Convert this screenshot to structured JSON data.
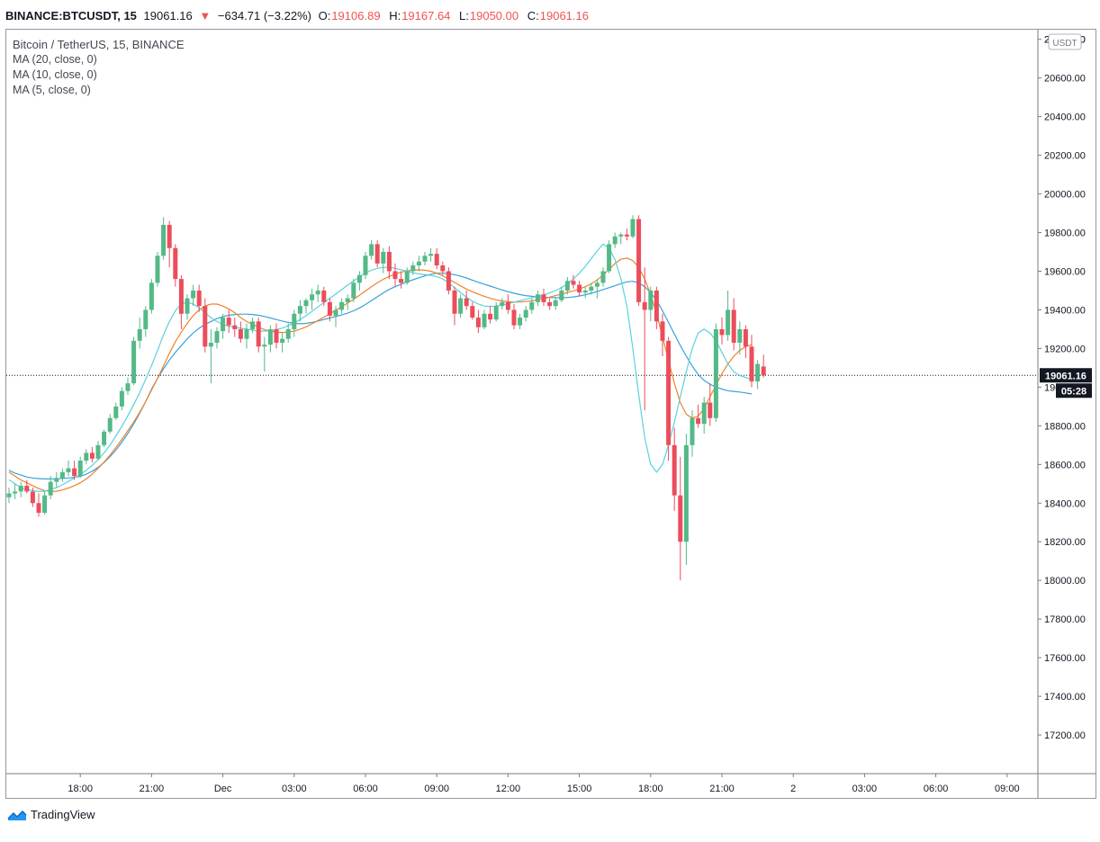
{
  "header": {
    "symbol": "BINANCE:BTCUSDT, 15",
    "last": "19061.16",
    "change": "−634.71 (−3.22%)",
    "open_label": "O:",
    "open": "19106.89",
    "high_label": "H:",
    "high": "19167.64",
    "low_label": "L:",
    "low": "19050.00",
    "close_label": "C:",
    "close": "19061.16",
    "down_arrow": "▼"
  },
  "legend": {
    "title": "Bitcoin / TetherUS, 15, BINANCE",
    "ma1": "MA (20, close, 0)",
    "ma2": "MA (10, close, 0)",
    "ma3": "MA (5, close, 0)"
  },
  "price_axis": {
    "currency": "USDT",
    "last_price_label": "19061.16",
    "countdown": "05:28"
  },
  "footer": {
    "brand": "TradingView"
  },
  "colors": {
    "up": "#53b987",
    "down": "#eb4d5c",
    "ma20": "#3aa1dc",
    "ma10": "#f08228",
    "ma5": "#5ad2dc",
    "axis": "#131722"
  },
  "chart_data": {
    "type": "candlestick",
    "title": "Bitcoin / TetherUS, 15, BINANCE",
    "ylim": [
      17000,
      20850
    ],
    "yticks": [
      17200,
      17400,
      17600,
      17800,
      18000,
      18200,
      18400,
      18600,
      18800,
      19000,
      19200,
      19400,
      19600,
      19800,
      20000,
      20200,
      20400,
      20600,
      20800
    ],
    "x_ticks": [
      {
        "label": "18:00",
        "bar": 12
      },
      {
        "label": "21:00",
        "bar": 24
      },
      {
        "label": "Dec",
        "bar": 36
      },
      {
        "label": "03:00",
        "bar": 48
      },
      {
        "label": "06:00",
        "bar": 60
      },
      {
        "label": "09:00",
        "bar": 72
      },
      {
        "label": "12:00",
        "bar": 84
      },
      {
        "label": "15:00",
        "bar": 96
      },
      {
        "label": "18:00",
        "bar": 108
      },
      {
        "label": "21:00",
        "bar": 120
      },
      {
        "label": "2",
        "bar": 132
      },
      {
        "label": "03:00",
        "bar": 144
      },
      {
        "label": "06:00",
        "bar": 156
      },
      {
        "label": "09:00",
        "bar": 168
      }
    ],
    "candles": [
      [
        18430,
        18480,
        18400,
        18450
      ],
      [
        18450,
        18500,
        18420,
        18460
      ],
      [
        18460,
        18510,
        18430,
        18490
      ],
      [
        18490,
        18520,
        18450,
        18460
      ],
      [
        18460,
        18480,
        18380,
        18400
      ],
      [
        18400,
        18450,
        18330,
        18350
      ],
      [
        18350,
        18460,
        18340,
        18440
      ],
      [
        18440,
        18540,
        18420,
        18510
      ],
      [
        18510,
        18560,
        18480,
        18530
      ],
      [
        18530,
        18580,
        18510,
        18560
      ],
      [
        18560,
        18620,
        18540,
        18580
      ],
      [
        18580,
        18620,
        18520,
        18540
      ],
      [
        18540,
        18640,
        18530,
        18620
      ],
      [
        18620,
        18680,
        18600,
        18660
      ],
      [
        18660,
        18690,
        18610,
        18630
      ],
      [
        18630,
        18720,
        18620,
        18700
      ],
      [
        18700,
        18780,
        18690,
        18770
      ],
      [
        18770,
        18860,
        18760,
        18840
      ],
      [
        18840,
        18920,
        18830,
        18900
      ],
      [
        18900,
        19000,
        18880,
        18980
      ],
      [
        18980,
        19050,
        18960,
        19020
      ],
      [
        19020,
        19260,
        19010,
        19240
      ],
      [
        19240,
        19360,
        19200,
        19300
      ],
      [
        19300,
        19420,
        19260,
        19400
      ],
      [
        19400,
        19560,
        19380,
        19540
      ],
      [
        19540,
        19700,
        19520,
        19680
      ],
      [
        19680,
        19880,
        19660,
        19840
      ],
      [
        19840,
        19860,
        19620,
        19720
      ],
      [
        19720,
        19740,
        19520,
        19560
      ],
      [
        19560,
        19580,
        19300,
        19380
      ],
      [
        19380,
        19480,
        19350,
        19460
      ],
      [
        19460,
        19530,
        19420,
        19500
      ],
      [
        19500,
        19530,
        19390,
        19420
      ],
      [
        19420,
        19460,
        19180,
        19210
      ],
      [
        19210,
        19300,
        19020,
        19230
      ],
      [
        19230,
        19310,
        19200,
        19290
      ],
      [
        19290,
        19380,
        19250,
        19360
      ],
      [
        19360,
        19400,
        19280,
        19320
      ],
      [
        19320,
        19360,
        19260,
        19300
      ],
      [
        19300,
        19340,
        19230,
        19250
      ],
      [
        19250,
        19330,
        19200,
        19300
      ],
      [
        19300,
        19360,
        19280,
        19340
      ],
      [
        19340,
        19360,
        19180,
        19210
      ],
      [
        19210,
        19260,
        19080,
        19220
      ],
      [
        19220,
        19320,
        19180,
        19300
      ],
      [
        19300,
        19330,
        19200,
        19230
      ],
      [
        19230,
        19280,
        19180,
        19250
      ],
      [
        19250,
        19330,
        19230,
        19300
      ],
      [
        19300,
        19400,
        19260,
        19380
      ],
      [
        19380,
        19450,
        19340,
        19420
      ],
      [
        19420,
        19460,
        19380,
        19450
      ],
      [
        19450,
        19510,
        19400,
        19480
      ],
      [
        19480,
        19530,
        19440,
        19500
      ],
      [
        19500,
        19520,
        19420,
        19440
      ],
      [
        19440,
        19460,
        19340,
        19370
      ],
      [
        19370,
        19420,
        19310,
        19400
      ],
      [
        19400,
        19460,
        19380,
        19440
      ],
      [
        19440,
        19480,
        19400,
        19460
      ],
      [
        19460,
        19560,
        19440,
        19540
      ],
      [
        19540,
        19600,
        19500,
        19580
      ],
      [
        19580,
        19700,
        19560,
        19680
      ],
      [
        19680,
        19760,
        19660,
        19740
      ],
      [
        19740,
        19760,
        19620,
        19640
      ],
      [
        19640,
        19720,
        19590,
        19700
      ],
      [
        19700,
        19730,
        19560,
        19600
      ],
      [
        19600,
        19640,
        19520,
        19560
      ],
      [
        19560,
        19600,
        19510,
        19540
      ],
      [
        19540,
        19620,
        19530,
        19600
      ],
      [
        19600,
        19650,
        19580,
        19630
      ],
      [
        19630,
        19680,
        19600,
        19650
      ],
      [
        19650,
        19700,
        19630,
        19680
      ],
      [
        19680,
        19720,
        19650,
        19690
      ],
      [
        19690,
        19720,
        19610,
        19630
      ],
      [
        19630,
        19650,
        19580,
        19600
      ],
      [
        19600,
        19620,
        19480,
        19500
      ],
      [
        19500,
        19520,
        19320,
        19380
      ],
      [
        19380,
        19480,
        19360,
        19460
      ],
      [
        19460,
        19500,
        19400,
        19420
      ],
      [
        19420,
        19440,
        19350,
        19360
      ],
      [
        19360,
        19400,
        19280,
        19310
      ],
      [
        19310,
        19400,
        19300,
        19380
      ],
      [
        19380,
        19420,
        19330,
        19350
      ],
      [
        19350,
        19440,
        19340,
        19420
      ],
      [
        19420,
        19460,
        19400,
        19440
      ],
      [
        19440,
        19480,
        19380,
        19400
      ],
      [
        19400,
        19430,
        19300,
        19320
      ],
      [
        19320,
        19380,
        19300,
        19360
      ],
      [
        19360,
        19420,
        19340,
        19400
      ],
      [
        19400,
        19460,
        19380,
        19440
      ],
      [
        19440,
        19500,
        19420,
        19480
      ],
      [
        19480,
        19510,
        19420,
        19440
      ],
      [
        19440,
        19460,
        19400,
        19420
      ],
      [
        19420,
        19460,
        19400,
        19450
      ],
      [
        19450,
        19520,
        19440,
        19500
      ],
      [
        19500,
        19570,
        19480,
        19550
      ],
      [
        19550,
        19580,
        19510,
        19530
      ],
      [
        19530,
        19550,
        19470,
        19490
      ],
      [
        19490,
        19520,
        19460,
        19500
      ],
      [
        19500,
        19540,
        19480,
        19520
      ],
      [
        19520,
        19560,
        19460,
        19540
      ],
      [
        19540,
        19620,
        19520,
        19600
      ],
      [
        19600,
        19760,
        19590,
        19740
      ],
      [
        19740,
        19800,
        19720,
        19780
      ],
      [
        19780,
        19800,
        19740,
        19790
      ],
      [
        19790,
        19820,
        19760,
        19780
      ],
      [
        19780,
        19890,
        19770,
        19870
      ],
      [
        19870,
        19890,
        19420,
        19440
      ],
      [
        19440,
        19620,
        18880,
        19400
      ],
      [
        19400,
        19520,
        19340,
        19500
      ],
      [
        19500,
        19520,
        19300,
        19340
      ],
      [
        19340,
        19380,
        19160,
        19240
      ],
      [
        19240,
        19260,
        18620,
        18700
      ],
      [
        18700,
        18790,
        18360,
        18440
      ],
      [
        18440,
        18640,
        18000,
        18200
      ],
      [
        18200,
        18760,
        18080,
        18700
      ],
      [
        18700,
        18880,
        18640,
        18840
      ],
      [
        18840,
        18910,
        18790,
        18810
      ],
      [
        18810,
        18950,
        18760,
        18920
      ],
      [
        18920,
        19020,
        18800,
        18840
      ],
      [
        18840,
        19330,
        18820,
        19300
      ],
      [
        19300,
        19360,
        19220,
        19270
      ],
      [
        19270,
        19500,
        19240,
        19400
      ],
      [
        19400,
        19460,
        19190,
        19230
      ],
      [
        19230,
        19340,
        19170,
        19300
      ],
      [
        19300,
        19320,
        19150,
        19210
      ],
      [
        19210,
        19270,
        19000,
        19030
      ],
      [
        19030,
        19140,
        18990,
        19120
      ],
      [
        19106.89,
        19167.64,
        19050,
        19061.16
      ]
    ],
    "ma20": [
      18570,
      18555,
      18545,
      18535,
      18530,
      18527,
      18525,
      18525,
      18526,
      18528,
      18530,
      18533,
      18538,
      18550,
      18565,
      18585,
      18610,
      18640,
      18675,
      18715,
      18760,
      18810,
      18865,
      18925,
      18990,
      19045,
      19095,
      19140,
      19180,
      19215,
      19250,
      19280,
      19305,
      19325,
      19340,
      19355,
      19365,
      19372,
      19376,
      19378,
      19378,
      19376,
      19372,
      19366,
      19358,
      19350,
      19342,
      19335,
      19330,
      19328,
      19330,
      19335,
      19342,
      19350,
      19358,
      19366,
      19374,
      19383,
      19395,
      19410,
      19428,
      19448,
      19468,
      19488,
      19506,
      19520,
      19533,
      19545,
      19556,
      19566,
      19576,
      19584,
      19590,
      19590,
      19588,
      19582,
      19575,
      19565,
      19554,
      19543,
      19533,
      19523,
      19513,
      19503,
      19494,
      19486,
      19479,
      19474,
      19470,
      19467,
      19465,
      19464,
      19463,
      19462,
      19464,
      19467,
      19472,
      19478,
      19486,
      19495,
      19505,
      19515,
      19525,
      19536,
      19545,
      19548,
      19540,
      19520,
      19490,
      19450,
      19395,
      19335,
      19275,
      19215,
      19160,
      19110,
      19065,
      19035,
      19015,
      19000,
      18990,
      18982,
      18978,
      18975,
      18970,
      18965
    ],
    "ma10": [
      18560,
      18540,
      18520,
      18505,
      18490,
      18475,
      18465,
      18460,
      18462,
      18468,
      18478,
      18490,
      18505,
      18525,
      18550,
      18580,
      18612,
      18648,
      18688,
      18730,
      18775,
      18820,
      18870,
      18925,
      18985,
      19045,
      19110,
      19175,
      19235,
      19285,
      19330,
      19370,
      19400,
      19420,
      19430,
      19430,
      19420,
      19405,
      19385,
      19360,
      19340,
      19325,
      19310,
      19298,
      19290,
      19285,
      19283,
      19285,
      19290,
      19300,
      19312,
      19328,
      19345,
      19362,
      19380,
      19398,
      19416,
      19435,
      19455,
      19476,
      19498,
      19520,
      19540,
      19558,
      19573,
      19585,
      19595,
      19602,
      19606,
      19607,
      19605,
      19600,
      19590,
      19576,
      19560,
      19542,
      19524,
      19508,
      19494,
      19482,
      19470,
      19460,
      19452,
      19446,
      19442,
      19440,
      19441,
      19443,
      19447,
      19452,
      19458,
      19466,
      19474,
      19482,
      19490,
      19498,
      19508,
      19520,
      19535,
      19555,
      19580,
      19610,
      19640,
      19662,
      19668,
      19655,
      19620,
      19560,
      19480,
      19380,
      19260,
      19140,
      19020,
      18920,
      18860,
      18840,
      18850,
      18890,
      18950,
      19010,
      19070,
      19120,
      19160,
      19190,
      19210,
      19220
    ],
    "ma5": [
      18520,
      18500,
      18480,
      18470,
      18465,
      18460,
      18462,
      18470,
      18480,
      18495,
      18512,
      18530,
      18548,
      18570,
      18595,
      18625,
      18660,
      18700,
      18748,
      18798,
      18852,
      18910,
      18972,
      19040,
      19112,
      19190,
      19270,
      19340,
      19395,
      19430,
      19440,
      19430,
      19410,
      19385,
      19360,
      19340,
      19325,
      19315,
      19310,
      19305,
      19300,
      19295,
      19290,
      19290,
      19292,
      19298,
      19306,
      19318,
      19332,
      19350,
      19370,
      19392,
      19415,
      19438,
      19460,
      19482,
      19505,
      19528,
      19550,
      19570,
      19590,
      19605,
      19615,
      19620,
      19620,
      19615,
      19608,
      19600,
      19592,
      19586,
      19582,
      19578,
      19572,
      19560,
      19540,
      19515,
      19490,
      19465,
      19445,
      19430,
      19420,
      19418,
      19420,
      19425,
      19432,
      19440,
      19448,
      19455,
      19463,
      19470,
      19478,
      19488,
      19500,
      19515,
      19535,
      19560,
      19590,
      19625,
      19665,
      19705,
      19740,
      19720,
      19660,
      19560,
      19420,
      19200,
      18960,
      18740,
      18600,
      18560,
      18600,
      18700,
      18820,
      18950,
      19080,
      19200,
      19280,
      19300,
      19280,
      19240,
      19180,
      19120,
      19080,
      19060,
      19050,
      19040
    ]
  }
}
